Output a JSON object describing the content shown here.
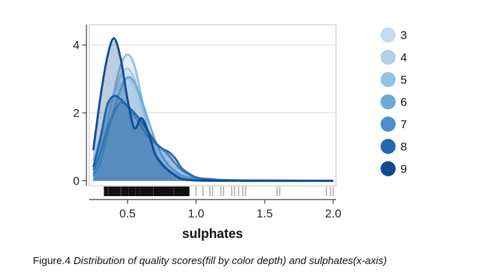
{
  "chart_data": {
    "type": "area",
    "title": "",
    "xlabel": "sulphates",
    "ylabel": "",
    "xlim": [
      0.22,
      2.02
    ],
    "ylim": [
      -0.15,
      4.6
    ],
    "x_ticks": [
      "0.5",
      "1.0",
      "1.5",
      "2.0"
    ],
    "y_ticks": [
      "0",
      "2",
      "4"
    ],
    "grid": "horizontal",
    "legend": {
      "title": "",
      "position": "right",
      "entries": [
        "3",
        "4",
        "5",
        "6",
        "7",
        "8",
        "9"
      ]
    },
    "colors": [
      "#c6dbef",
      "#b0d0e9",
      "#93c1df",
      "#6daad4",
      "#4a8fc6",
      "#2468af",
      "#104a91"
    ],
    "series": [
      {
        "name": "3",
        "color": "#c6dbef",
        "x": [
          0.25,
          0.3,
          0.35,
          0.4,
          0.45,
          0.5,
          0.55,
          0.6,
          0.65,
          0.7,
          0.75,
          0.8,
          0.85,
          0.9,
          1.0,
          1.1,
          1.2,
          1.4,
          2.0
        ],
        "y": [
          0.6,
          1.3,
          2.0,
          2.5,
          2.85,
          3.0,
          2.8,
          2.2,
          1.5,
          0.9,
          0.5,
          0.3,
          0.15,
          0.08,
          0.03,
          0.01,
          0.0,
          0.0,
          0.0
        ]
      },
      {
        "name": "4",
        "color": "#b0d0e9",
        "x": [
          0.25,
          0.3,
          0.35,
          0.4,
          0.45,
          0.5,
          0.55,
          0.6,
          0.65,
          0.7,
          0.75,
          0.8,
          0.85,
          0.9,
          1.0,
          1.1,
          1.2,
          1.4,
          2.0
        ],
        "y": [
          0.4,
          1.0,
          1.8,
          2.5,
          3.1,
          3.3,
          3.0,
          2.3,
          1.5,
          0.9,
          0.5,
          0.3,
          0.2,
          0.1,
          0.05,
          0.02,
          0.0,
          0.0,
          0.0
        ]
      },
      {
        "name": "5",
        "color": "#93c1df",
        "x": [
          0.25,
          0.3,
          0.35,
          0.4,
          0.45,
          0.5,
          0.55,
          0.6,
          0.65,
          0.7,
          0.75,
          0.8,
          0.85,
          0.9,
          1.0,
          1.1,
          1.2,
          1.4,
          2.0
        ],
        "y": [
          0.2,
          0.7,
          1.6,
          2.6,
          3.4,
          3.72,
          3.4,
          2.5,
          1.5,
          0.8,
          0.45,
          0.3,
          0.2,
          0.12,
          0.05,
          0.02,
          0.01,
          0.0,
          0.0
        ]
      },
      {
        "name": "6",
        "color": "#6daad4",
        "x": [
          0.25,
          0.3,
          0.35,
          0.4,
          0.45,
          0.5,
          0.55,
          0.6,
          0.65,
          0.7,
          0.75,
          0.8,
          0.85,
          0.9,
          1.0,
          1.1,
          1.2,
          1.4,
          2.0
        ],
        "y": [
          0.15,
          0.5,
          1.3,
          2.1,
          2.7,
          3.05,
          2.9,
          2.4,
          1.8,
          1.2,
          0.75,
          0.45,
          0.28,
          0.15,
          0.06,
          0.03,
          0.02,
          0.01,
          0.0
        ]
      },
      {
        "name": "7",
        "color": "#4a8fc6",
        "x": [
          0.25,
          0.3,
          0.35,
          0.4,
          0.45,
          0.5,
          0.55,
          0.6,
          0.65,
          0.7,
          0.75,
          0.8,
          0.85,
          0.9,
          1.0,
          1.1,
          1.2,
          1.4,
          2.0
        ],
        "y": [
          0.3,
          0.8,
          1.5,
          2.0,
          2.3,
          2.2,
          1.9,
          1.6,
          1.3,
          1.1,
          0.95,
          0.75,
          0.5,
          0.3,
          0.1,
          0.04,
          0.02,
          0.01,
          0.0
        ]
      },
      {
        "name": "8",
        "color": "#2468af",
        "x": [
          0.25,
          0.3,
          0.35,
          0.4,
          0.45,
          0.5,
          0.55,
          0.6,
          0.65,
          0.7,
          0.75,
          0.8,
          0.85,
          0.9,
          1.0,
          1.1,
          1.2,
          1.4,
          2.0
        ],
        "y": [
          0.4,
          1.2,
          2.2,
          2.5,
          2.4,
          2.2,
          2.0,
          1.75,
          1.45,
          1.15,
          0.95,
          0.85,
          0.65,
          0.35,
          0.1,
          0.05,
          0.02,
          0.0,
          0.0
        ]
      },
      {
        "name": "9",
        "color": "#104a91",
        "x": [
          0.25,
          0.3,
          0.35,
          0.4,
          0.45,
          0.5,
          0.55,
          0.6,
          0.65,
          0.7,
          0.75,
          0.8,
          0.85,
          0.9,
          1.0,
          1.1,
          1.2,
          1.4,
          2.0
        ],
        "y": [
          0.9,
          2.4,
          3.6,
          4.2,
          3.6,
          2.4,
          1.55,
          1.85,
          1.45,
          0.8,
          0.5,
          0.3,
          0.15,
          0.05,
          0.01,
          0.0,
          0.0,
          0.0,
          0.0
        ]
      }
    ]
  },
  "caption": {
    "figure_label": "Figure.4 ",
    "text": "Distribution of quality scores(fill by color depth) and sulphates(x-axis)"
  }
}
